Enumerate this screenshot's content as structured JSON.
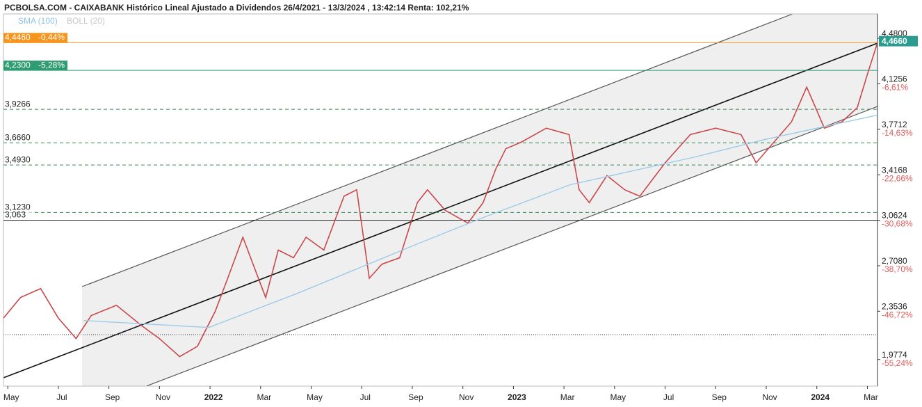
{
  "chart_data": {
    "type": "line",
    "title": "PCBOLSA.COM - CAIXABANK Histórico Lineal Ajustado a Dividendos 26/4/2021 - 13/3/2024 , 13:42:14 Renta: 102,21%",
    "legend": [
      "SMA (100)",
      "BOLL (20)"
    ],
    "xlim": [
      -0.17,
      34.4
    ],
    "ylim": [
      1.77,
      4.67
    ],
    "xticks": [
      {
        "value": 0,
        "label": "May"
      },
      {
        "value": 2,
        "label": "Jul"
      },
      {
        "value": 4,
        "label": "Sep"
      },
      {
        "value": 6,
        "label": "Nov"
      },
      {
        "value": 8,
        "label": "2022"
      },
      {
        "value": 10,
        "label": "Mar"
      },
      {
        "value": 12,
        "label": "May"
      },
      {
        "value": 14,
        "label": "Jul"
      },
      {
        "value": 16,
        "label": "Sep"
      },
      {
        "value": 18,
        "label": "Nov"
      },
      {
        "value": 20,
        "label": "2023"
      },
      {
        "value": 22,
        "label": "Mar"
      },
      {
        "value": 24,
        "label": "May"
      },
      {
        "value": 26,
        "label": "Jul"
      },
      {
        "value": 28,
        "label": "Sep"
      },
      {
        "value": 30,
        "label": "Nov"
      },
      {
        "value": 32,
        "label": "2024"
      },
      {
        "value": 34,
        "label": "Mar"
      }
    ],
    "yticks": [
      {
        "value": 4.48,
        "label": "4,4800"
      },
      {
        "value": 4.1256,
        "label": "4,1256"
      },
      {
        "value": 3.7712,
        "label": "3,7712"
      },
      {
        "value": 3.4168,
        "label": "3,4168"
      },
      {
        "value": 3.0624,
        "label": "3,0624"
      },
      {
        "value": 2.708,
        "label": "2,7080"
      },
      {
        "value": 2.3536,
        "label": "2,3536"
      },
      {
        "value": 1.9774,
        "label": "1,9774"
      }
    ],
    "ytick_returns": [
      null,
      "-6,61%",
      "-14,63%",
      "-22,66%",
      "-30,68%",
      "-38,70%",
      "-46,72%",
      "-55,24%"
    ],
    "levels": [
      {
        "value": 4.446,
        "label": "4,4460",
        "change": "-0,44%",
        "color": "#f7941d",
        "style": "boxed"
      },
      {
        "value": 4.23,
        "label": "4,2300",
        "change": "-5,28%",
        "color": "#2e9e72",
        "style": "boxed"
      },
      {
        "value": 3.9266,
        "label": "3,9266",
        "color": "#2e8b57",
        "style": "dashed"
      },
      {
        "value": 3.666,
        "label": "3,6660",
        "color": "#2e8b57",
        "style": "dashed"
      },
      {
        "value": 3.493,
        "label": "3,4930",
        "color": "#2e8b57",
        "style": "dashed"
      },
      {
        "value": 3.123,
        "label": "3,1230",
        "color": "#2e8b57",
        "style": "dashed"
      },
      {
        "value": 3.063,
        "label": "3,063",
        "color": "#222222",
        "style": "solid"
      }
    ],
    "last_price": {
      "value": 4.466,
      "label": "4,4660",
      "color": "#2a9d8f"
    },
    "series": [
      {
        "color": "#c9474a",
        "x": [
          -0.17,
          0.5,
          1.3,
          2.0,
          2.7,
          3.3,
          4.3,
          5.3,
          6.0,
          6.8,
          7.5,
          8.2,
          8.7,
          9.3,
          10.2,
          10.7,
          11.3,
          11.8,
          12.5,
          13.3,
          13.8,
          14.3,
          14.8,
          15.5,
          16.2,
          16.6,
          17.3,
          18.2,
          18.8,
          19.3,
          19.7,
          20.3,
          21.3,
          22.2,
          22.6,
          23.0,
          23.7,
          24.4,
          25.0,
          26.0,
          27.0,
          28.0,
          29.0,
          29.6,
          30.3,
          31.0,
          31.6,
          32.3,
          33.0,
          33.6,
          34.0,
          34.4
        ],
        "values": [
          2.3,
          2.46,
          2.53,
          2.3,
          2.14,
          2.32,
          2.4,
          2.24,
          2.14,
          2.0,
          2.08,
          2.35,
          2.61,
          2.93,
          2.46,
          2.83,
          2.77,
          2.93,
          2.83,
          3.25,
          3.3,
          2.61,
          2.72,
          2.77,
          3.2,
          3.3,
          3.14,
          3.04,
          3.2,
          3.46,
          3.62,
          3.67,
          3.78,
          3.73,
          3.3,
          3.2,
          3.41,
          3.3,
          3.25,
          3.51,
          3.73,
          3.78,
          3.73,
          3.51,
          3.67,
          3.83,
          4.1,
          3.78,
          3.83,
          3.94,
          4.2,
          4.446
        ]
      },
      {
        "color": "#9ccbe8",
        "x": [
          3.0,
          7.95,
          11.52,
          16.2,
          18.95,
          22.25,
          27.2,
          29.95,
          34.4
        ],
        "values": [
          2.281,
          2.227,
          2.498,
          2.878,
          3.095,
          3.339,
          3.556,
          3.692,
          3.882
        ]
      }
    ]
  }
}
